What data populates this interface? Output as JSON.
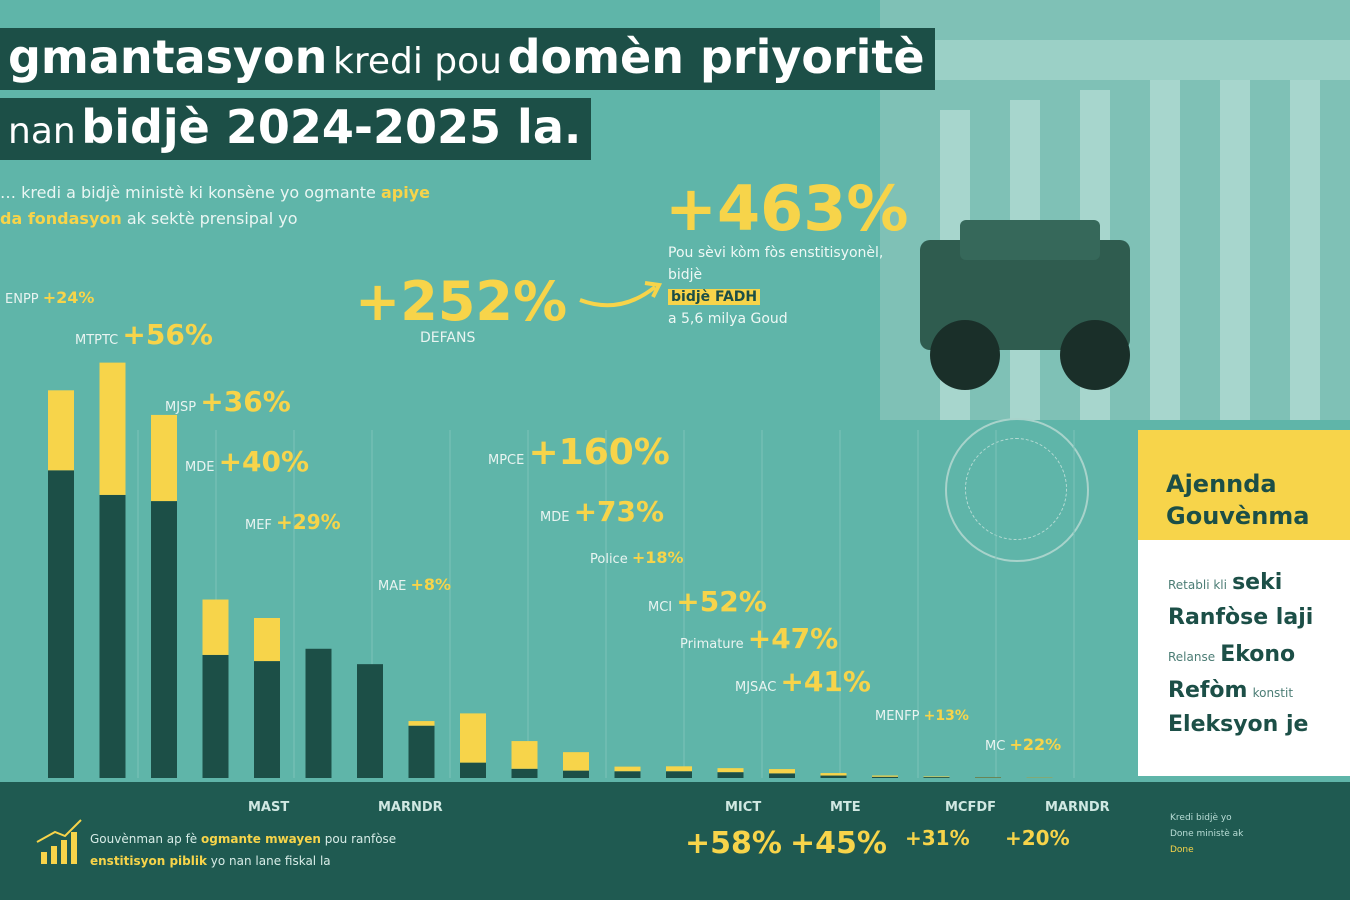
{
  "title": {
    "line1_bold_a": "gmantasyon",
    "line1_light": "kredi pou",
    "line1_bold_b": "domèn priyoritè",
    "line2_light": "nan",
    "line2_bold": "bidjè 2024-2025 la."
  },
  "subtitle": {
    "part1": "… kredi a bidjè ministè ki konsène yo ogmante",
    "hl1": "apiye",
    "part2": "",
    "hl2": "da fondasyon",
    "part3": "ak sektè prensipal yo"
  },
  "highlight_463": {
    "value": "+463%",
    "text": "Pou sèvi kòm fòs enstitisyonèl, bidjè",
    "hl": "bidjè FADH",
    "text2": "a 5,6 milya Goud"
  },
  "arrow_label": "",
  "chart_data": {
    "type": "bar",
    "stacked": true,
    "title": "",
    "xlabel": "",
    "ylabel": "",
    "categories": [
      "ENPP",
      "MTPTC",
      "MJSP",
      "MDE",
      "MEF",
      "",
      "MAST",
      "MAE",
      "MPCE",
      "MDE2",
      "Police",
      "MCI",
      "Primature",
      "MJSAC",
      "MENFP",
      "MC",
      "MCFDF",
      "MARNDR",
      "MICT",
      "MTE"
    ],
    "series": [
      {
        "name": "",
        "values": [
          100,
          92,
          90,
          40,
          38,
          42,
          37,
          17,
          5,
          3,
          2.4,
          2.2,
          2.2,
          1.9,
          1.5,
          0.8,
          0.4,
          0.3,
          0.2,
          0.1
        ]
      },
      {
        "name": "",
        "values": [
          26,
          43,
          28,
          18,
          14,
          0,
          0,
          1.5,
          16,
          9,
          6,
          1.5,
          1.6,
          1.3,
          1.4,
          0.8,
          0.4,
          0.2,
          0.1,
          0.1
        ]
      }
    ],
    "labels": [
      {
        "name": "ENPP",
        "pct": "+24%"
      },
      {
        "name": "MTPTC",
        "pct": "+56%"
      },
      {
        "name": "MJSP",
        "pct": "+36%"
      },
      {
        "name": "MDE",
        "pct": "+40%"
      },
      {
        "name": "MEF",
        "pct": "+29%"
      },
      {
        "name": "MAE",
        "pct": "+8%"
      },
      {
        "name": "MPCE",
        "pct": "+160%"
      },
      {
        "name": "MDE",
        "pct": "+73%"
      },
      {
        "name": "Police",
        "pct": "+18%"
      },
      {
        "name": "MCI",
        "pct": "+52%"
      },
      {
        "name": "Primature",
        "pct": "+47%"
      },
      {
        "name": "MJSAC",
        "pct": "+41%"
      },
      {
        "name": "MENFP",
        "pct": "+13%"
      },
      {
        "name": "MC",
        "pct": "+22%"
      }
    ],
    "defans": {
      "name": "DEFANS",
      "pct": "+252%"
    },
    "bottom_labels": [
      {
        "name": "MICT",
        "pct": "+58%"
      },
      {
        "name": "MTE",
        "pct": "+45%"
      },
      {
        "name": "MCFDF",
        "pct": "+31%"
      },
      {
        "name": "MARNDR",
        "pct": "+20%"
      }
    ],
    "axis_names": [
      "MAST",
      "MARNDR"
    ]
  },
  "bottom": {
    "text_a": "Gouvènman ap fè",
    "hl_a": "ogmante mwayen",
    "text_b": "pou ranfòse",
    "hl_b": "enstitisyon piblik",
    "text_c": "yo nan lane fiskal la"
  },
  "agenda": {
    "title_line1": "Ajennda",
    "title_line2": "Gouvènma",
    "items": [
      {
        "small": "Retabli kli",
        "large": "seki"
      },
      {
        "small": "",
        "large": "Ranfòse laji"
      },
      {
        "small": "Relanse",
        "large": "Ekono"
      },
      {
        "small": "",
        "large": "Refòm",
        "small2": "konstit"
      },
      {
        "small": "",
        "large": "Eleksyon je"
      }
    ]
  },
  "footnote": {
    "a": "Kredi bidjè yo",
    "b": "Done ministè ak",
    "hl": "Done"
  },
  "colors": {
    "background": "#5fb5a9",
    "bar_dark": "#1c4f47",
    "bar_accent": "#f7d44a",
    "band": "#1f5a51"
  }
}
